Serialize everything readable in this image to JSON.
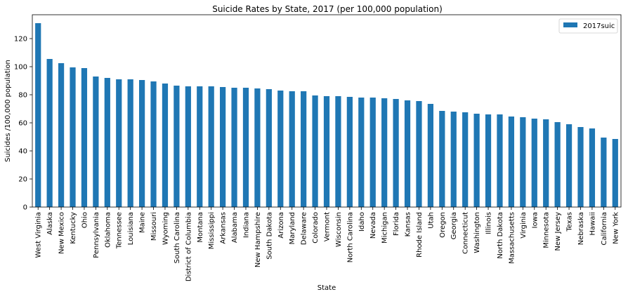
{
  "chart_data": {
    "type": "bar",
    "title": "Suicide Rates by State, 2017 (per 100,000 population)",
    "xlabel": "State",
    "ylabel": "Suicides /100,000 population",
    "ylim": [
      0,
      137
    ],
    "yticks": [
      0,
      20,
      40,
      60,
      80,
      100,
      120
    ],
    "grid": false,
    "legend_position": "top-right",
    "series": [
      {
        "name": "2017suic",
        "color": "#1f77b4",
        "values": [
          131,
          105.5,
          102.5,
          99.5,
          99,
          93,
          92,
          91,
          91,
          90.5,
          89.5,
          88,
          86.5,
          86,
          86,
          86,
          85.5,
          85,
          85,
          84.5,
          84,
          83,
          82.5,
          82.5,
          79.5,
          79,
          79,
          78.5,
          78,
          78,
          77.5,
          77,
          76,
          75.5,
          73.5,
          68.5,
          68,
          67.5,
          66.5,
          66,
          66,
          64.5,
          64,
          63,
          62.5,
          60.5,
          59,
          57,
          56,
          49.5,
          48.5
        ]
      }
    ],
    "categories": [
      "West Virginia",
      "Alaska",
      "New Mexico",
      "Kentucky",
      "Ohio",
      "Pennsylvania",
      "Oklahoma",
      "Tennessee",
      "Louisiana",
      "Maine",
      "Missouri",
      "Wyoming",
      "South Carolina",
      "District of Columbia",
      "Montana",
      "Mississippi",
      "Arkansas",
      "Alabama",
      "Indiana",
      "New Hampshire",
      "South Dakota",
      "Arizona",
      "Maryland",
      "Delaware",
      "Colorado",
      "Vermont",
      "Wisconsin",
      "North Carolina",
      "Idaho",
      "Nevada",
      "Michigan",
      "Florida",
      "Kansas",
      "Rhode Island",
      "Utah",
      "Oregon",
      "Georgia",
      "Connecticut",
      "Washington",
      "Illinois",
      "North Dakota",
      "Massachusetts",
      "Virginia",
      "Iowa",
      "Minnesota",
      "New Jersey",
      "Texas",
      "Nebraska",
      "Hawaii",
      "California",
      "New York"
    ]
  }
}
